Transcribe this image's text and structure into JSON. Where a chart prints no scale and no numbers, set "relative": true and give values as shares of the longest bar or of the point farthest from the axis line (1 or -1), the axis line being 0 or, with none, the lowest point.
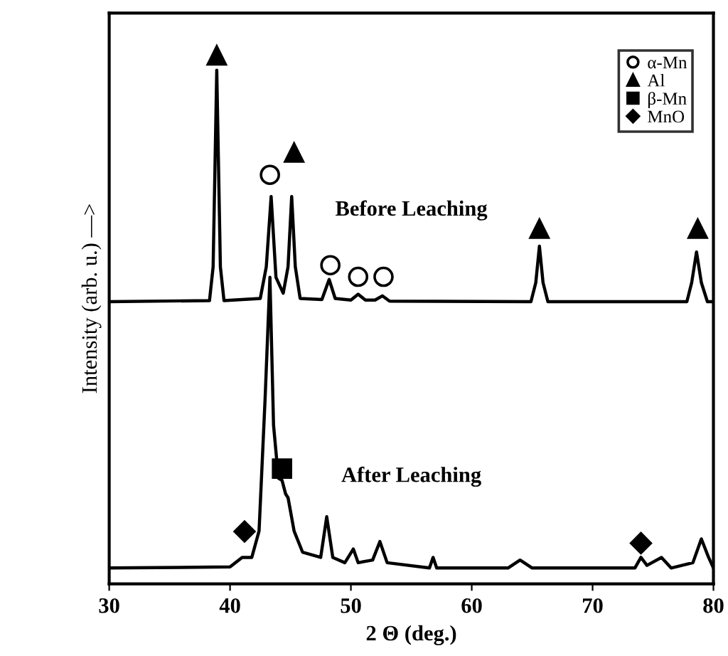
{
  "chart_data": {
    "type": "line",
    "relative": true,
    "xlabel": "2 Θ (deg.)",
    "ylabel": "Intensity (arb. u.) —>",
    "xlim": [
      30,
      80
    ],
    "xticks": [
      30,
      40,
      50,
      60,
      70,
      80
    ],
    "grid": false,
    "legend": "top right",
    "tick_labels": "x",
    "annotations": [
      "Before Leaching",
      "After Leaching"
    ],
    "series": [
      {
        "color": "#000000",
        "x": [
          30,
          38.3,
          38.6,
          38.9,
          39.2,
          39.5,
          42.5,
          43.0,
          43.4,
          43.8,
          44.4,
          44.8,
          45.1,
          45.4,
          45.8,
          47.6,
          48.2,
          48.7,
          50.0,
          50.6,
          51.2,
          52.0,
          52.6,
          53.2,
          64.9,
          65.3,
          65.6,
          65.9,
          66.3,
          77.8,
          78.2,
          78.6,
          79.0,
          79.5,
          80
        ],
        "values": [
          0.534,
          0.536,
          0.6,
          0.972,
          0.6,
          0.536,
          0.54,
          0.6,
          0.733,
          0.58,
          0.55,
          0.6,
          0.733,
          0.6,
          0.54,
          0.538,
          0.576,
          0.54,
          0.537,
          0.548,
          0.537,
          0.537,
          0.545,
          0.535,
          0.534,
          0.57,
          0.639,
          0.57,
          0.534,
          0.534,
          0.57,
          0.628,
          0.57,
          0.534,
          0.534
        ]
      },
      {
        "color": "#000000",
        "x": [
          30,
          40,
          41,
          41.8,
          42.4,
          42.9,
          43.3,
          43.6,
          44.0,
          44.3,
          44.6,
          44.8,
          45.3,
          46,
          47.5,
          48.0,
          48.5,
          49.5,
          50.2,
          50.6,
          51.8,
          52.4,
          53,
          56.5,
          56.8,
          57.1,
          63,
          64,
          65,
          73.5,
          74,
          74.5,
          75.7,
          76.5,
          78.3,
          79,
          79.6,
          80
        ],
        "values": [
          0.03,
          0.032,
          0.05,
          0.05,
          0.1,
          0.35,
          0.58,
          0.3,
          0.2,
          0.196,
          0.17,
          0.163,
          0.1,
          0.06,
          0.05,
          0.127,
          0.05,
          0.04,
          0.066,
          0.04,
          0.045,
          0.08,
          0.04,
          0.03,
          0.05,
          0.03,
          0.03,
          0.045,
          0.03,
          0.03,
          0.05,
          0.035,
          0.05,
          0.03,
          0.04,
          0.085,
          0.05,
          0.03
        ]
      },
      {
        "type": "scatter",
        "name": "α-Mn",
        "marker": "circle",
        "color": "#ffffff",
        "x": [
          43.3,
          48.3,
          50.6,
          52.7
        ],
        "values": [
          0.774,
          0.603,
          0.581,
          0.581
        ]
      },
      {
        "type": "scatter",
        "name": "Al",
        "marker": "triangle",
        "color": "#000000",
        "x": [
          38.9,
          45.3,
          65.6,
          78.7
        ],
        "values": [
          1.0,
          0.816,
          0.672,
          0.672
        ]
      },
      {
        "type": "scatter",
        "name": "β-Mn",
        "marker": "square",
        "color": "#000000",
        "x": [
          44.3
        ],
        "values": [
          0.218
        ]
      },
      {
        "type": "scatter",
        "name": "MnO",
        "marker": "diamond",
        "color": "#000000",
        "x": [
          41.2,
          74.0
        ],
        "values": [
          0.099,
          0.077
        ]
      }
    ]
  }
}
